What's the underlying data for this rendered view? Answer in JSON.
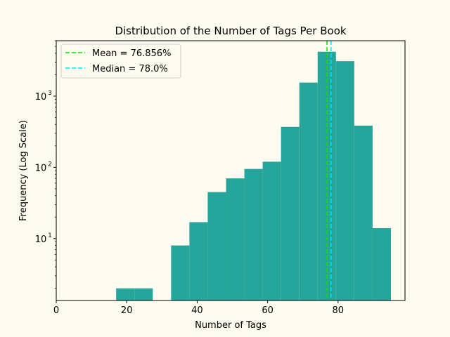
{
  "chart_data": {
    "type": "bar",
    "title": "Distribution of the Number of Tags Per Book",
    "xlabel": "Number of Tags",
    "ylabel": "Frequency (Log Scale)",
    "y_scale": "log",
    "xlim": [
      0,
      99
    ],
    "ylim": [
      1.35,
      6000
    ],
    "x_ticks": [
      0,
      20,
      40,
      60,
      80
    ],
    "y_ticks": [
      {
        "value": 10,
        "base": "10",
        "exp": "1"
      },
      {
        "value": 100,
        "base": "10",
        "exp": "2"
      },
      {
        "value": 1000,
        "base": "10",
        "exp": "3"
      }
    ],
    "bar_color": "#26a69a",
    "bins": [
      {
        "x0": 17,
        "x1": 22.2,
        "count": 2
      },
      {
        "x0": 22.2,
        "x1": 27.4,
        "count": 2
      },
      {
        "x0": 32.6,
        "x1": 37.8,
        "count": 8
      },
      {
        "x0": 37.8,
        "x1": 43.0,
        "count": 17
      },
      {
        "x0": 43.0,
        "x1": 48.2,
        "count": 45
      },
      {
        "x0": 48.2,
        "x1": 53.4,
        "count": 70
      },
      {
        "x0": 53.4,
        "x1": 58.6,
        "count": 95
      },
      {
        "x0": 58.6,
        "x1": 63.8,
        "count": 120
      },
      {
        "x0": 63.8,
        "x1": 69.0,
        "count": 370
      },
      {
        "x0": 69.0,
        "x1": 74.2,
        "count": 1550
      },
      {
        "x0": 74.2,
        "x1": 79.4,
        "count": 4200
      },
      {
        "x0": 79.4,
        "x1": 84.6,
        "count": 3100
      },
      {
        "x0": 84.6,
        "x1": 89.8,
        "count": 385
      },
      {
        "x0": 89.8,
        "x1": 95.0,
        "count": 14
      }
    ],
    "lines": [
      {
        "x": 76.856,
        "color": "#00e600",
        "label": "Mean = 76.856%"
      },
      {
        "x": 78.0,
        "color": "#00e6e6",
        "label": "Median = 78.0%"
      }
    ],
    "legend_position": "top-left",
    "grid": false
  }
}
